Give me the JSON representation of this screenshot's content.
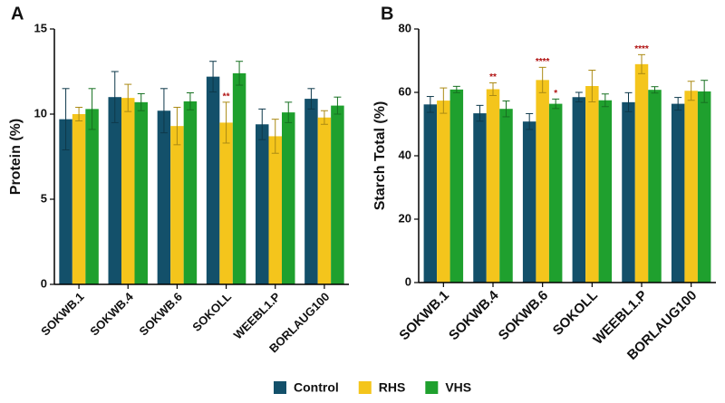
{
  "chart_data": [
    {
      "type": "bar",
      "panel": "A",
      "y_label": "Protein (%)",
      "categories": [
        "SOKWB.1",
        "SOKWB.4",
        "SOKWB.6",
        "SOKOLL",
        "WEEBL1.P",
        "BORLAUG100"
      ],
      "series": [
        {
          "name": "Control",
          "color": "#13506a",
          "values": [
            9.7,
            11.0,
            10.2,
            12.2,
            9.4,
            10.9
          ],
          "errors": [
            1.8,
            1.5,
            1.3,
            0.9,
            0.9,
            0.6
          ]
        },
        {
          "name": "RHS",
          "color": "#f4c51c",
          "values": [
            10.0,
            10.95,
            9.3,
            9.5,
            8.7,
            9.8
          ],
          "errors": [
            0.4,
            0.8,
            1.1,
            1.2,
            1.0,
            0.4
          ]
        },
        {
          "name": "VHS",
          "color": "#1fa02e",
          "values": [
            10.3,
            10.7,
            10.75,
            12.4,
            10.1,
            10.5
          ],
          "errors": [
            1.2,
            0.5,
            0.5,
            0.7,
            0.6,
            0.5
          ]
        }
      ],
      "annotations": [
        {
          "text": "**",
          "category": "SOKOLL",
          "series": "RHS"
        }
      ],
      "ylim": [
        0,
        15
      ],
      "yticks": [
        0,
        5,
        10,
        15
      ]
    },
    {
      "type": "bar",
      "panel": "B",
      "y_label": "Starch Total (%)",
      "categories": [
        "SOKWB.1",
        "SOKWB.4",
        "SOKWB.6",
        "SOKOLL",
        "WEEBL1.P",
        "BORLAUG100"
      ],
      "series": [
        {
          "name": "Control",
          "color": "#13506a",
          "values": [
            56.2,
            53.4,
            50.8,
            58.5,
            56.9,
            56.4
          ],
          "errors": [
            2.5,
            2.5,
            2.5,
            1.5,
            3,
            2
          ]
        },
        {
          "name": "RHS",
          "color": "#f4c51c",
          "values": [
            57.4,
            61,
            63.9,
            62,
            68.9,
            60.5
          ],
          "errors": [
            4,
            2,
            4,
            5,
            3,
            3
          ]
        },
        {
          "name": "VHS",
          "color": "#1fa02e",
          "values": [
            60.9,
            54.8,
            56.4,
            57.5,
            60.8,
            60.3
          ],
          "errors": [
            1,
            2.5,
            1.5,
            2,
            1,
            3.5
          ]
        }
      ],
      "annotations": [
        {
          "text": "**",
          "category": "SOKWB.4",
          "series": "RHS"
        },
        {
          "text": "****",
          "category": "SOKWB.6",
          "series": "RHS"
        },
        {
          "text": "*",
          "category": "SOKWB.6",
          "series": "VHS"
        },
        {
          "text": "****",
          "category": "WEEBL1.P",
          "series": "RHS"
        }
      ],
      "ylim": [
        0,
        80
      ],
      "yticks": [
        0,
        20,
        40,
        60,
        80
      ]
    }
  ]
}
